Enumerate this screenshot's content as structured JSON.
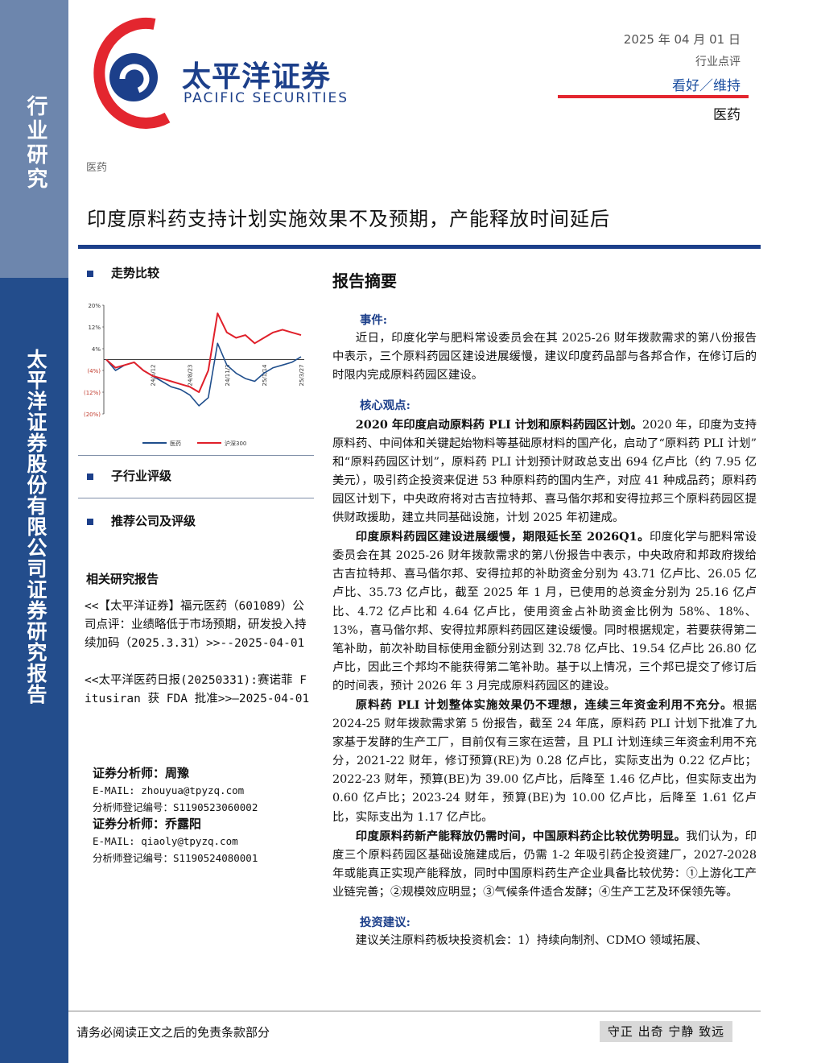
{
  "header": {
    "logo_cn": "太平洋证券",
    "logo_en": "PACIFIC SECURITIES",
    "date": "2025 年 04 月 01 日",
    "doc_type": "行业点评",
    "rating": "看好／维持",
    "industry": "医药"
  },
  "sidebar": {
    "top": "行业研究",
    "bottom": "太平洋证券股份有限公司证券研究报告"
  },
  "breadcrumb": "医药",
  "title": "印度原料药支持计划实施效果不及预期，产能释放时间延后",
  "left": {
    "trend_heading": "走势比较",
    "sub_rating_heading": "子行业评级",
    "company_heading": "推荐公司及评级",
    "related_heading": "相关研究报告",
    "related": [
      "<<【太平洋证券】福元医药（601089）公司点评：业绩略低于市场预期，研发投入持续加码（2025.3.31）>>--2025-04-01",
      "<<太平洋医药日报(20250331):赛诺菲 Fitusiran 获 FDA 批准>>—2025-04-01"
    ],
    "analysts": [
      {
        "name": "证券分析师：周豫",
        "email": "E-MAIL: zhouyua@tpyzq.com",
        "reg": "分析师登记编号：S1190523060002"
      },
      {
        "name": "证券分析师：乔露阳",
        "email": "E-MAIL: qiaoly@tpyzq.com",
        "reg": "分析师登记编号：S1190524080001"
      }
    ]
  },
  "chart_data": {
    "type": "line",
    "categories": [
      null,
      null,
      null,
      null,
      null,
      "24/6/12",
      null,
      null,
      null,
      "24/8/23",
      null,
      null,
      null,
      "24/11/3",
      null,
      null,
      null,
      "25/1/14",
      null,
      null,
      null,
      "25/3/27"
    ],
    "series": [
      {
        "name": "医药",
        "color": "#1f4e8c",
        "values": [
          0,
          -4,
          -2,
          -1,
          -4,
          -6,
          -8,
          -10,
          -11,
          -13,
          -17,
          -14,
          6,
          -2,
          -5,
          -7,
          -8,
          -5,
          -3,
          -2,
          -1,
          1
        ]
      },
      {
        "name": "沪深300",
        "color": "#e0202a",
        "values": [
          0,
          -3,
          -2,
          -1,
          -4,
          -6,
          -7,
          -8,
          -9,
          -10,
          -12,
          -4,
          17,
          10,
          8,
          9,
          6,
          8,
          10,
          11,
          10,
          9
        ]
      }
    ],
    "ylim": [
      -20,
      20
    ],
    "yticks": [
      {
        "value": 20,
        "label": "20%"
      },
      {
        "value": 12,
        "label": "12%"
      },
      {
        "value": 4,
        "label": "4%"
      },
      {
        "value": -4,
        "label": "(4%)"
      },
      {
        "value": -12,
        "label": "(12%)"
      },
      {
        "value": -20,
        "label": "(20%)"
      }
    ]
  },
  "summary": {
    "heading": "报告摘要",
    "event_heading": "事件:",
    "event": "近日，印度化学与肥料常设委员会在其 2025-26 财年拨款需求的第八份报告中表示，三个原料药园区建设进展缓慢，建议印度药品部与各邦合作，在修订后的时限内完成原料药园区建设。",
    "core_heading": "核心观点:",
    "points": [
      {
        "lead": "2020 年印度启动原料药 PLI 计划和原料药园区计划。",
        "body": "2020 年，印度为支持原料药、中间体和关键起始物料等基础原材料的国产化，启动了“原料药 PLI 计划”和“原料药园区计划”，原料药 PLI 计划预计财政总支出 694 亿卢比（约 7.95 亿美元），吸引药企投资来促进 53 种原料药的国内生产，对应 41 种成品药；原料药园区计划下，中央政府将对古吉拉特邦、喜马偕尔邦和安得拉邦三个原料药园区提供财政援助，建立共同基础设施，计划 2025 年初建成。"
      },
      {
        "lead": "印度原料药园区建设进展缓慢，期限延长至 2026Q1。",
        "body": "印度化学与肥料常设委员会在其 2025-26 财年拨款需求的第八份报告中表示，中央政府和邦政府拨给古吉拉特邦、喜马偕尔邦、安得拉邦的补助资金分别为 43.71 亿卢比、26.05 亿卢比、35.73 亿卢比，截至 2025 年 1 月，已使用的总资金分别为 25.16 亿卢比、4.72 亿卢比和 4.64 亿卢比，使用资金占补助资金比例为 58%、18%、13%，喜马偕尔邦、安得拉邦原料药园区建设缓慢。同时根据规定，若要获得第二笔补助，前次补助目标使用金额分别达到 32.78 亿卢比、19.54 亿卢比 26.80 亿卢比，因此三个邦均不能获得第二笔补助。基于以上情况，三个邦已提交了修订后的时间表，预计 2026 年 3 月完成原料药园区的建设。"
      },
      {
        "lead": "原料药 PLI 计划整体实施效果仍不理想，连续三年资金利用不充分。",
        "body": "根据 2024-25 财年拨款需求第 5 份报告，截至 24 年底，原料药 PLI 计划下批准了九家基于发酵的生产工厂，目前仅有三家在运营，且 PLI 计划连续三年资金利用不充分，2021-22 财年，修订预算(RE)为 0.28 亿卢比，实际支出为 0.22 亿卢比；2022-23 财年，预算(BE)为 39.00 亿卢比，后降至 1.46 亿卢比，但实际支出为 0.60 亿卢比；2023-24 财年，预算(BE)为 10.00 亿卢比，后降至 1.61 亿卢比，实际支出为 1.17 亿卢比。"
      },
      {
        "lead": "印度原料药新产能释放仍需时间，中国原料药企比较优势明显。",
        "body": "我们认为，印度三个原料药园区基础设施建成后，仍需 1-2 年吸引药企投资建厂，2027-2028 年或能真正实现产能释放，同时中国原料药生产企业具备比较优势：①上游化工产业链完善；②规模效应明显；③气候条件适合发酵；④生产工艺及环保领先等。"
      }
    ],
    "advice_heading": "投资建议:",
    "advice": "建议关注原料药板块投资机会：1）持续向制剂、CDMO 领域拓展、"
  },
  "footer": {
    "disclaimer": "请务必阅读正文之后的免责条款部分",
    "motto": "守正 出奇 宁静 致远"
  }
}
